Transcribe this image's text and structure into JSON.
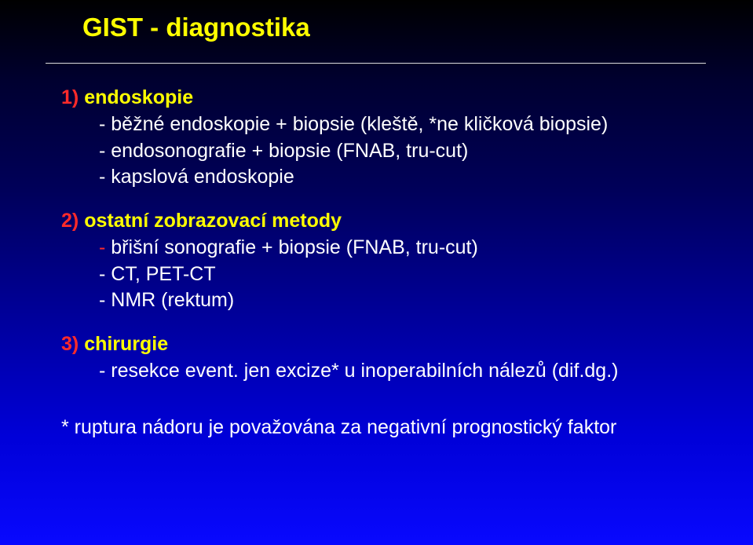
{
  "title": "GIST -  diagnostika",
  "sections": {
    "s1": {
      "num": "1)",
      "label": "endoskopie",
      "lines": [
        "- běžné endoskopie + biopsie (kleště, *ne kličková biopsie)",
        "- endosonografie + biopsie (FNAB, tru-cut)",
        "- kapslová endoskopie"
      ]
    },
    "s2": {
      "num": "2)",
      "label": "ostatní zobrazovací metody",
      "dash": "-",
      "line0rest": " břišní sonografie + biopsie (FNAB, tru-cut)",
      "lines": [
        "- CT, PET-CT",
        "- NMR (rektum)"
      ]
    },
    "s3": {
      "num": "3)",
      "label": "chirurgie",
      "lines": [
        "- resekce event. jen excize* u inoperabilních nálezů (dif.dg.)"
      ]
    }
  },
  "footnote": "* ruptura nádoru je považována za negativní prognostický faktor",
  "colors": {
    "title": "#ffff00",
    "num": "#ff2a2a",
    "heading": "#ffff00",
    "body": "#ffffff"
  },
  "fontsizes": {
    "title": 33,
    "body": 25
  }
}
